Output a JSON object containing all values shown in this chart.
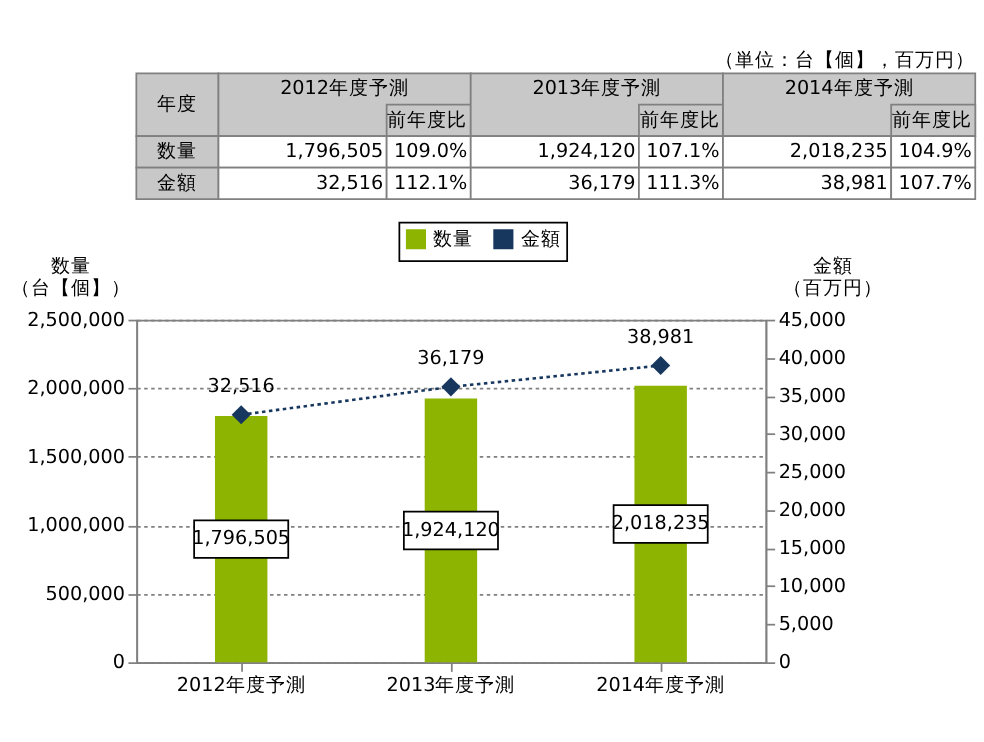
{
  "chart_data": {
    "type": "bar",
    "categories": [
      "2012年度予測",
      "2013年度予測",
      "2014年度予測"
    ],
    "series": [
      {
        "name": "数量",
        "color": "#8cb400",
        "values": [
          1796505,
          1924120,
          2018235
        ],
        "value_labels": [
          "1,796,505",
          "1,924,120",
          "2,018,235"
        ]
      },
      {
        "name": "金額",
        "type": "line",
        "axis": "y2",
        "color": "#17375e",
        "values": [
          32516,
          36179,
          38981
        ],
        "value_labels": [
          "32,516",
          "36,179",
          "38,981"
        ]
      }
    ],
    "ylabel": "数量（台【個】）",
    "y2label": "金額（百万円）",
    "ylim": [
      0,
      2500000
    ],
    "yticks": [
      0,
      {
        "value": 500000,
        "label": "500,000"
      },
      {
        "value": 1000000,
        "label": "1,000,000"
      },
      {
        "value": 1500000,
        "label": "1,500,000"
      },
      {
        "value": 2000000,
        "label": "2,000,000"
      },
      {
        "value": 2500000,
        "label": "2,500,000"
      }
    ],
    "y2lim": [
      0,
      45000
    ],
    "y2ticks": [
      0,
      {
        "value": 5000,
        "label": "5,000"
      },
      {
        "value": 10000,
        "label": "10,000"
      },
      {
        "value": 15000,
        "label": "15,000"
      },
      {
        "value": 20000,
        "label": "20,000"
      },
      {
        "value": 25000,
        "label": "25,000"
      },
      {
        "value": 30000,
        "label": "30,000"
      },
      {
        "value": 35000,
        "label": "35,000"
      },
      {
        "value": 40000,
        "label": "40,000"
      },
      {
        "value": 45000,
        "label": "45,000"
      }
    ],
    "grid": "y",
    "legend": "top",
    "marker": "diamond",
    "line_style": "dotted",
    "annotations": [
      "（単位：台【個】，百万円）",
      "年度",
      "前年度比",
      "109.0%",
      "107.1%",
      "104.9%",
      "112.1%",
      "111.3%",
      "107.7%"
    ]
  }
}
